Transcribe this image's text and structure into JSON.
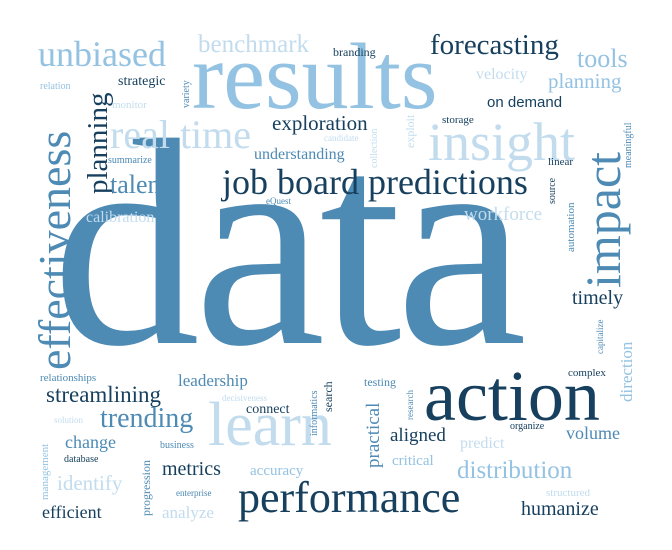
{
  "cloud": {
    "words": [
      "data",
      "results",
      "action",
      "learn",
      "performance",
      "impact",
      "effectiveness",
      "insight",
      "job board predictions",
      "unbiased",
      "forecasting",
      "real time",
      "planning",
      "benchmark",
      "tools",
      "talent",
      "exploration",
      "trending",
      "distribution",
      "streamlining",
      "workforce",
      "timely",
      "metrics",
      "humanize",
      "identify",
      "calibration",
      "understanding",
      "leadership",
      "practical",
      "aligned",
      "change",
      "volume",
      "direction",
      "efficient",
      "analyze",
      "accuracy",
      "velocity",
      "strategic",
      "on demand",
      "branding",
      "relation",
      "variety",
      "monitor",
      "storage",
      "candidate",
      "summarize",
      "collection",
      "exploit",
      "linear",
      "meaningful",
      "eQuest",
      "automation",
      "capitalize",
      "relationships",
      "decisiveness",
      "testing",
      "search",
      "informatics",
      "research",
      "complex",
      "connect",
      "solution",
      "organize",
      "predict",
      "management",
      "database",
      "business",
      "critical",
      "source",
      "progression",
      "enterprise",
      "structured"
    ]
  }
}
